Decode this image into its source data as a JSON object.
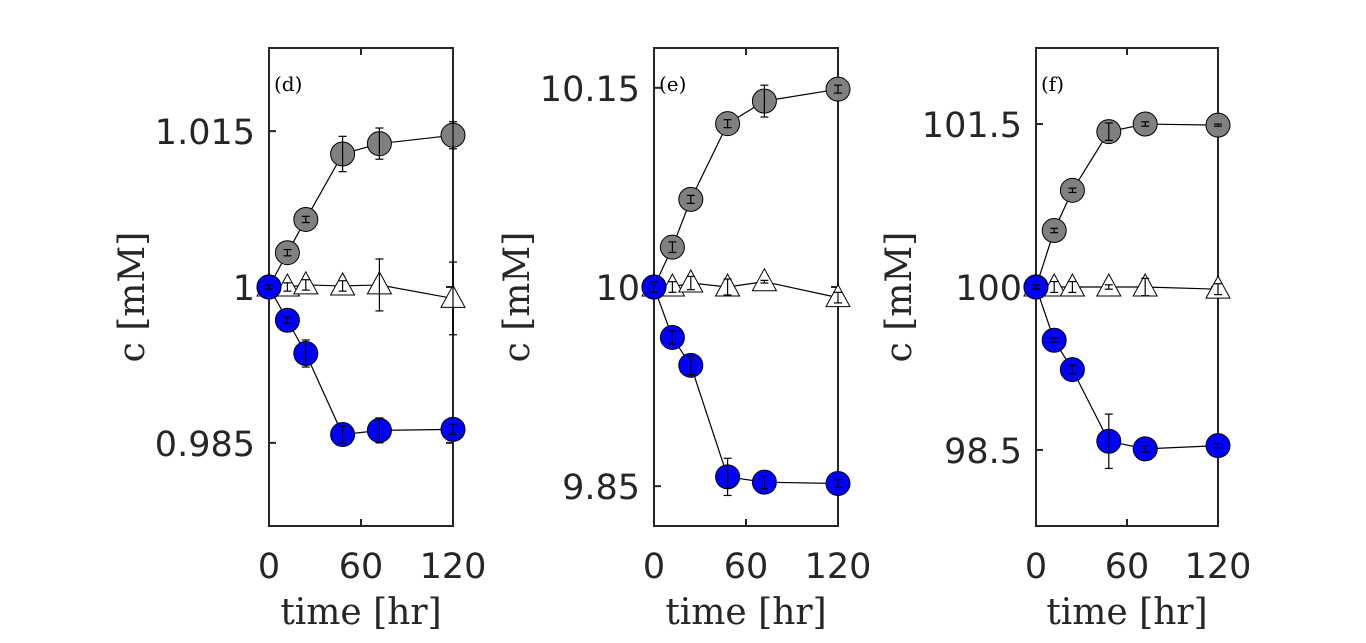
{
  "colors": {
    "gray_marker": "#808080",
    "blue_marker": "#0000ff",
    "triangle_marker": "#ffffff",
    "axis": "#262626",
    "line": "#000000"
  },
  "chart_data": [
    {
      "type": "scatter",
      "panel_label": "(d)",
      "xlabel": "time [hr]",
      "ylabel": "c [mM]",
      "xlim": [
        0,
        120
      ],
      "ylim": [
        0.977,
        1.023
      ],
      "xticks": [
        0,
        60,
        120
      ],
      "xtick_labels": [
        "0",
        "60",
        "120"
      ],
      "yticks": [
        0.985,
        1.0,
        1.015
      ],
      "ytick_labels": [
        "0.985",
        "1",
        "1.015"
      ],
      "x": [
        0,
        12,
        24,
        48,
        72,
        120
      ],
      "series": [
        {
          "name": "gray circles",
          "marker": "circle",
          "values": [
            1.0,
            1.0033,
            1.0065,
            1.0128,
            1.0138,
            1.0146
          ],
          "errors": [
            0.0002,
            0.0003,
            0.0003,
            0.0017,
            0.0015,
            0.0013
          ]
        },
        {
          "name": "triangles",
          "marker": "triangle",
          "values": [
            1.0,
            1.0,
            1.0002,
            1.0001,
            1.0002,
            0.9989
          ],
          "errors": [
            0.0005,
            0.0004,
            0.0005,
            0.0005,
            0.0025,
            0.0035
          ]
        },
        {
          "name": "blue circles",
          "marker": "circle",
          "values": [
            1.0,
            0.9968,
            0.9936,
            0.9858,
            0.9862,
            0.9863
          ],
          "errors": [
            0.0002,
            0.0003,
            0.0013,
            0.0008,
            0.0012,
            0.0005
          ]
        }
      ]
    },
    {
      "type": "scatter",
      "panel_label": "(e)",
      "xlabel": "time [hr]",
      "ylabel": "c [mM]",
      "xlim": [
        0,
        120
      ],
      "ylim": [
        9.82,
        10.18
      ],
      "xticks": [
        0,
        60,
        120
      ],
      "xtick_labels": [
        "0",
        "60",
        "120"
      ],
      "yticks": [
        9.85,
        10.0,
        10.15
      ],
      "ytick_labels": [
        "9.85",
        "10",
        "10.15"
      ],
      "x": [
        0,
        12,
        24,
        48,
        72,
        120
      ],
      "series": [
        {
          "name": "gray circles",
          "marker": "circle",
          "values": [
            10.0,
            10.03,
            10.066,
            10.123,
            10.14,
            10.149
          ],
          "errors": [
            0.004,
            0.004,
            0.003,
            0.003,
            0.012,
            0.003
          ]
        },
        {
          "name": "triangles",
          "marker": "triangle",
          "values": [
            10.0,
            10.0,
            10.003,
            10.0,
            10.004,
            9.992
          ],
          "errors": [
            0.003,
            0.004,
            0.005,
            0.006,
            0.001,
            0.004
          ]
        },
        {
          "name": "blue circles",
          "marker": "circle",
          "values": [
            10.0,
            9.962,
            9.941,
            9.857,
            9.853,
            9.852
          ],
          "errors": [
            0.004,
            0.005,
            0.007,
            0.014,
            0.005,
            0.003
          ]
        }
      ]
    },
    {
      "type": "scatter",
      "panel_label": "(f)",
      "xlabel": "time [hr]",
      "ylabel": "c [mM]",
      "xlim": [
        0,
        120
      ],
      "ylim": [
        97.8,
        102.2
      ],
      "xticks": [
        0,
        60,
        120
      ],
      "xtick_labels": [
        "0",
        "60",
        "120"
      ],
      "yticks": [
        98.5,
        100.0,
        101.5
      ],
      "ytick_labels": [
        "98.5",
        "100",
        "101.5"
      ],
      "x": [
        0,
        12,
        24,
        48,
        72,
        120
      ],
      "series": [
        {
          "name": "gray circles",
          "marker": "circle",
          "values": [
            100.0,
            100.52,
            100.89,
            101.43,
            101.5,
            101.49
          ],
          "errors": [
            0.01,
            0.02,
            0.02,
            0.08,
            0.02,
            0.01
          ]
        },
        {
          "name": "triangles",
          "marker": "triangle",
          "values": [
            100.0,
            100.0,
            100.0,
            100.0,
            100.0,
            99.98
          ],
          "errors": [
            0.03,
            0.05,
            0.05,
            0.02,
            0.08,
            0.05
          ]
        },
        {
          "name": "blue circles",
          "marker": "circle",
          "values": [
            100.0,
            99.51,
            99.24,
            98.58,
            98.51,
            98.54
          ],
          "errors": [
            0.02,
            0.02,
            0.04,
            0.25,
            0.03,
            0.02
          ]
        }
      ]
    }
  ]
}
